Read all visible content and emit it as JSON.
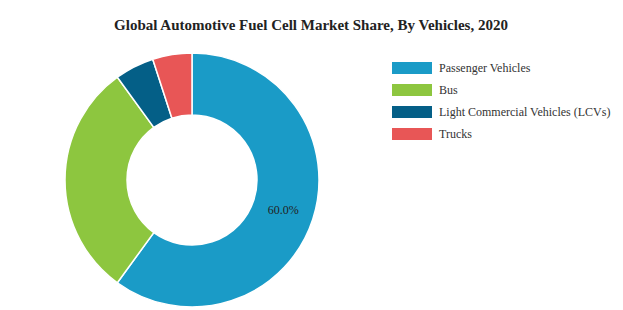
{
  "chart_data": {
    "type": "pie",
    "title": "Global Automotive Fuel Cell Market Share, By Vehicles, 2020",
    "categories": [
      "Passenger Vehicles",
      "Bus",
      "Light Commercial Vehicles (LCVs)",
      "Trucks"
    ],
    "values": [
      60.0,
      30,
      5,
      5
    ],
    "value_labels": [
      "60.0%",
      null,
      null,
      null
    ],
    "data_labels": true,
    "colors": [
      "#1a9bc7",
      "#8dc63f",
      "#045f87",
      "#e85656"
    ],
    "legend": "right"
  }
}
